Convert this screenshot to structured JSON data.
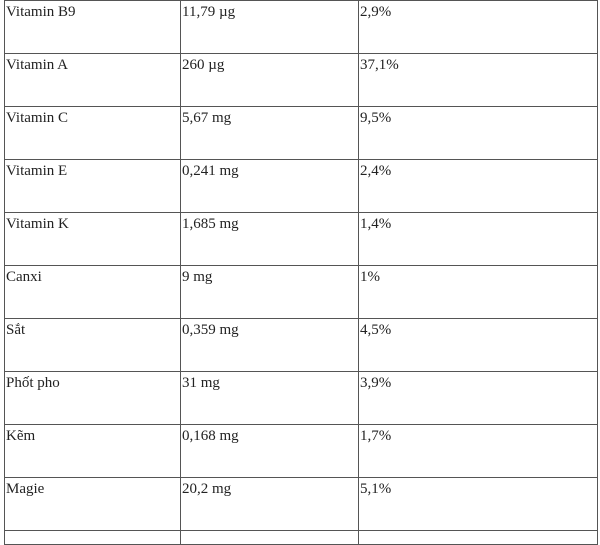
{
  "rows": [
    {
      "name": "Vitamin B9",
      "amount": "11,79 µg",
      "percent": "2,9%"
    },
    {
      "name": "Vitamin A",
      "amount": "260 µg",
      "percent": "37,1%"
    },
    {
      "name": "Vitamin C",
      "amount": "5,67 mg",
      "percent": "9,5%"
    },
    {
      "name": "Vitamin E",
      "amount": "0,241 mg",
      "percent": "2,4%"
    },
    {
      "name": "Vitamin K",
      "amount": "1,685 mg",
      "percent": "1,4%"
    },
    {
      "name": "Canxi",
      "amount": "9 mg",
      "percent": "1%"
    },
    {
      "name": "Sắt",
      "amount": "0,359 mg",
      "percent": "4,5%"
    },
    {
      "name": "Phốt pho",
      "amount": "31 mg",
      "percent": "3,9%"
    },
    {
      "name": "Kẽm",
      "amount": "0,168 mg",
      "percent": "1,7%"
    },
    {
      "name": "Magie",
      "amount": "20,2 mg",
      "percent": "5,1%"
    }
  ]
}
